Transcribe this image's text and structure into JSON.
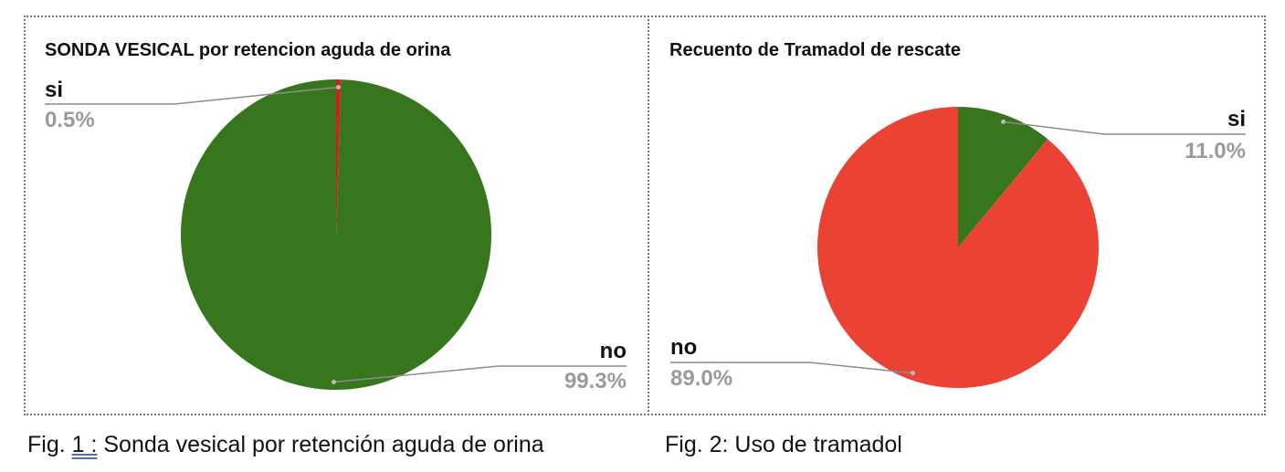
{
  "chart_data": [
    {
      "type": "pie",
      "title": "SONDA VESICAL por retencion aguda de orina",
      "slices": [
        {
          "label": "si",
          "value": 0.5,
          "display": "0.5%",
          "color": "#d0201a"
        },
        {
          "label": "no",
          "value": 99.3,
          "display": "99.3%",
          "color": "#38761d"
        }
      ]
    },
    {
      "type": "pie",
      "title": "Recuento de Tramadol de rescate",
      "slices": [
        {
          "label": "si",
          "value": 11.0,
          "display": "11.0%",
          "color": "#38761d"
        },
        {
          "label": "no",
          "value": 89.0,
          "display": "89.0%",
          "color": "#ea4335"
        }
      ]
    }
  ],
  "captions": {
    "fig1_prefix": "Fig. ",
    "fig1_number": "1 :",
    "fig1_text": " Sonda vesical por retención aguda de orina",
    "fig2": "Fig. 2:  Uso de tramadol"
  }
}
